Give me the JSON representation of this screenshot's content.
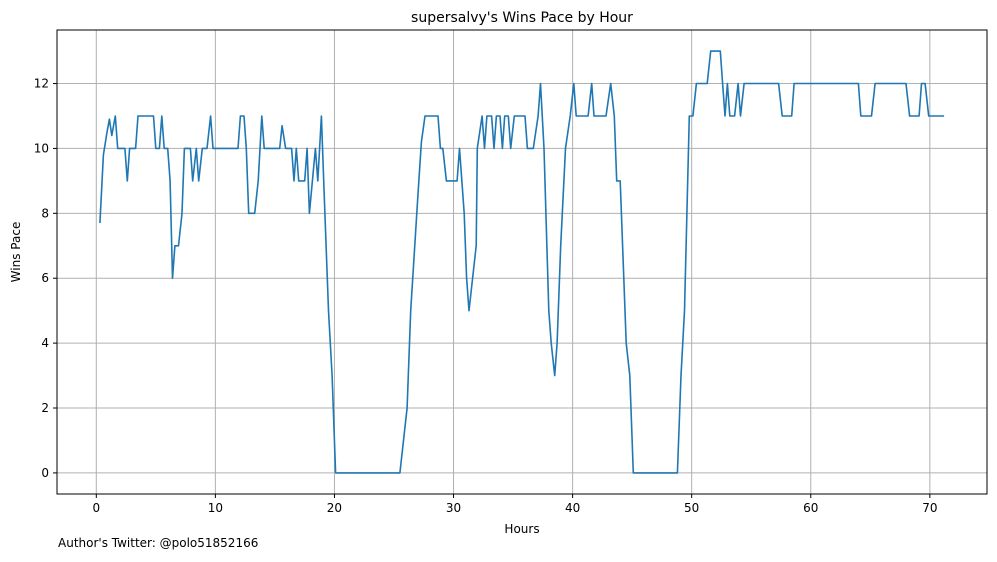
{
  "chart_data": {
    "type": "line",
    "title": "supersalvy's Wins Pace by Hour",
    "xlabel": "Hours",
    "ylabel": "Wins Pace",
    "xlim": [
      -3.3,
      74.8
    ],
    "ylim": [
      -0.65,
      13.65
    ],
    "xticks": [
      0,
      10,
      20,
      30,
      40,
      50,
      60,
      70
    ],
    "yticks": [
      0,
      2,
      4,
      6,
      8,
      10,
      12
    ],
    "grid": true,
    "series": [
      {
        "color": "#1f77b4",
        "points": [
          [
            0.3,
            7.7
          ],
          [
            0.6,
            9.8
          ],
          [
            0.9,
            10.5
          ],
          [
            1.1,
            10.9
          ],
          [
            1.3,
            10.4
          ],
          [
            1.6,
            11
          ],
          [
            1.8,
            10
          ],
          [
            2.2,
            10
          ],
          [
            2.4,
            10
          ],
          [
            2.6,
            9
          ],
          [
            2.8,
            10
          ],
          [
            3.3,
            10
          ],
          [
            3.5,
            11
          ],
          [
            4.8,
            11
          ],
          [
            5.0,
            10
          ],
          [
            5.3,
            10
          ],
          [
            5.5,
            11
          ],
          [
            5.7,
            10
          ],
          [
            6.0,
            10
          ],
          [
            6.2,
            9
          ],
          [
            6.4,
            6
          ],
          [
            6.6,
            7
          ],
          [
            6.9,
            7
          ],
          [
            7.2,
            8
          ],
          [
            7.4,
            10
          ],
          [
            7.9,
            10
          ],
          [
            8.1,
            9
          ],
          [
            8.4,
            10
          ],
          [
            8.6,
            9
          ],
          [
            8.9,
            10
          ],
          [
            9.3,
            10
          ],
          [
            9.6,
            11
          ],
          [
            9.8,
            10
          ],
          [
            11.9,
            10
          ],
          [
            12.1,
            11
          ],
          [
            12.4,
            11
          ],
          [
            12.6,
            10
          ],
          [
            12.8,
            8
          ],
          [
            13.3,
            8
          ],
          [
            13.6,
            9
          ],
          [
            13.9,
            11
          ],
          [
            14.1,
            10
          ],
          [
            15.4,
            10
          ],
          [
            15.6,
            10.7
          ],
          [
            15.9,
            10
          ],
          [
            16.4,
            10
          ],
          [
            16.6,
            9
          ],
          [
            16.8,
            10
          ],
          [
            17.0,
            9
          ],
          [
            17.5,
            9
          ],
          [
            17.7,
            10
          ],
          [
            17.9,
            8
          ],
          [
            18.4,
            10
          ],
          [
            18.6,
            9
          ],
          [
            18.9,
            11
          ],
          [
            19.1,
            9
          ],
          [
            19.5,
            5
          ],
          [
            19.8,
            3
          ],
          [
            20.1,
            0
          ],
          [
            25.5,
            0
          ],
          [
            26.1,
            2
          ],
          [
            26.4,
            5
          ],
          [
            27.0,
            8.5
          ],
          [
            27.3,
            10.2
          ],
          [
            27.6,
            11
          ],
          [
            28.7,
            11
          ],
          [
            28.9,
            10
          ],
          [
            29.1,
            10
          ],
          [
            29.4,
            9
          ],
          [
            30.3,
            9
          ],
          [
            30.5,
            10
          ],
          [
            30.9,
            8
          ],
          [
            31.1,
            6
          ],
          [
            31.3,
            5
          ],
          [
            31.9,
            7
          ],
          [
            32.0,
            10
          ],
          [
            32.4,
            11
          ],
          [
            32.6,
            10
          ],
          [
            32.8,
            11
          ],
          [
            33.2,
            11
          ],
          [
            33.4,
            10
          ],
          [
            33.6,
            11
          ],
          [
            33.9,
            11
          ],
          [
            34.1,
            10
          ],
          [
            34.3,
            11
          ],
          [
            34.6,
            11
          ],
          [
            34.8,
            10
          ],
          [
            35.1,
            11
          ],
          [
            36.0,
            11
          ],
          [
            36.2,
            10
          ],
          [
            36.7,
            10
          ],
          [
            37.1,
            11
          ],
          [
            37.3,
            12
          ],
          [
            37.6,
            10
          ],
          [
            38.0,
            5
          ],
          [
            38.2,
            4
          ],
          [
            38.5,
            3
          ],
          [
            38.7,
            4
          ],
          [
            39.0,
            7
          ],
          [
            39.4,
            10
          ],
          [
            39.8,
            11
          ],
          [
            40.1,
            12
          ],
          [
            40.3,
            11
          ],
          [
            41.3,
            11
          ],
          [
            41.6,
            12
          ],
          [
            41.8,
            11
          ],
          [
            42.8,
            11
          ],
          [
            43.2,
            12
          ],
          [
            43.5,
            11
          ],
          [
            43.7,
            9
          ],
          [
            44.0,
            9
          ],
          [
            44.3,
            6
          ],
          [
            44.5,
            4
          ],
          [
            44.8,
            3
          ],
          [
            45.1,
            0
          ],
          [
            48.8,
            0
          ],
          [
            49.1,
            3
          ],
          [
            49.4,
            5
          ],
          [
            49.8,
            11
          ],
          [
            50.1,
            11
          ],
          [
            50.4,
            12
          ],
          [
            51.3,
            12
          ],
          [
            51.6,
            13
          ],
          [
            52.4,
            13
          ],
          [
            52.6,
            12
          ],
          [
            52.8,
            11
          ],
          [
            53.0,
            12
          ],
          [
            53.2,
            11
          ],
          [
            53.6,
            11
          ],
          [
            53.9,
            12
          ],
          [
            54.1,
            11
          ],
          [
            54.4,
            12
          ],
          [
            57.3,
            12
          ],
          [
            57.6,
            11
          ],
          [
            58.4,
            11
          ],
          [
            58.6,
            12
          ],
          [
            64.0,
            12
          ],
          [
            64.2,
            11
          ],
          [
            65.1,
            11
          ],
          [
            65.4,
            12
          ],
          [
            68.0,
            12
          ],
          [
            68.3,
            11
          ],
          [
            69.1,
            11
          ],
          [
            69.3,
            12
          ],
          [
            69.6,
            12
          ],
          [
            69.9,
            11
          ],
          [
            71.2,
            11
          ]
        ]
      }
    ]
  },
  "footer": {
    "author_text": "Author's Twitter: @polo51852166"
  }
}
